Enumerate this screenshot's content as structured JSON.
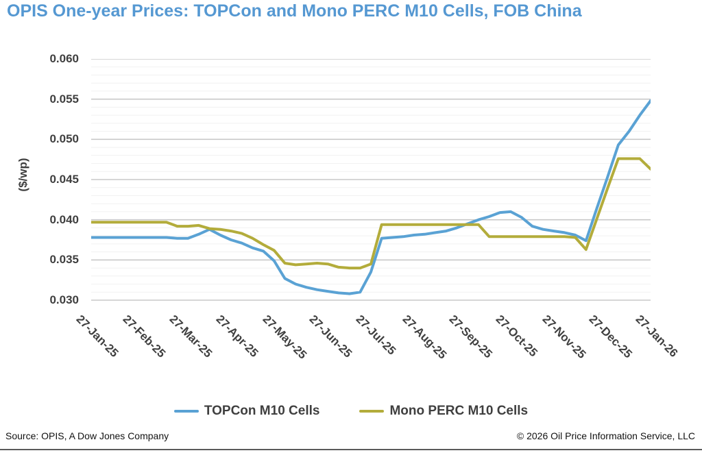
{
  "title": "OPIS One-year Prices: TOPCon and Mono PERC M10 Cells, FOB China",
  "footer": {
    "source": "Source: OPIS, A Dow Jones Company",
    "copyright": "© 2026 Oil Price Information Service, LLC"
  },
  "colors": {
    "title": "#5598D2",
    "topcon_line": "#5AA2D4",
    "mono_perc_line": "#B3AC3B",
    "axis_text": "#3f3f3f",
    "grid_major": "#c8c8c8",
    "grid_minor": "#f1f1f1"
  },
  "chart_data": {
    "type": "line",
    "title": "OPIS One-year Prices: TOPCon and Mono PERC M10 Cells, FOB China",
    "xlabel": "",
    "ylabel": "($/wp)",
    "ylim": [
      0.03,
      0.06
    ],
    "minor_step": 0.001,
    "major_step": 0.005,
    "grid": "horizontal major+minor",
    "legend_position": "bottom",
    "ytick_labels": [
      "0.060",
      "0.055",
      "0.050",
      "0.045",
      "0.040",
      "0.035",
      "0.030"
    ],
    "ytick_values": [
      0.06,
      0.055,
      0.05,
      0.045,
      0.04,
      0.035,
      0.03
    ],
    "xtick_labels": [
      "27-Jan-25",
      "27-Feb-25",
      "27-Mar-25",
      "27-Apr-25",
      "27-May-25",
      "27-Jun-25",
      "27-Jul-25",
      "27-Aug-25",
      "27-Sep-25",
      "27-Oct-25",
      "27-Nov-25",
      "27-Dec-25",
      "27-Jan-26"
    ],
    "x": [
      "27-Jan-25",
      "03-Feb-25",
      "10-Feb-25",
      "17-Feb-25",
      "24-Feb-25",
      "03-Mar-25",
      "10-Mar-25",
      "17-Mar-25",
      "24-Mar-25",
      "31-Mar-25",
      "07-Apr-25",
      "14-Apr-25",
      "21-Apr-25",
      "28-Apr-25",
      "05-May-25",
      "12-May-25",
      "19-May-25",
      "26-May-25",
      "02-Jun-25",
      "09-Jun-25",
      "16-Jun-25",
      "23-Jun-25",
      "30-Jun-25",
      "07-Jul-25",
      "14-Jul-25",
      "21-Jul-25",
      "28-Jul-25",
      "04-Aug-25",
      "11-Aug-25",
      "18-Aug-25",
      "25-Aug-25",
      "01-Sep-25",
      "08-Sep-25",
      "15-Sep-25",
      "22-Sep-25",
      "29-Sep-25",
      "06-Oct-25",
      "13-Oct-25",
      "20-Oct-25",
      "27-Oct-25",
      "03-Nov-25",
      "10-Nov-25",
      "17-Nov-25",
      "24-Nov-25",
      "01-Dec-25",
      "08-Dec-25",
      "15-Dec-25",
      "22-Dec-25",
      "29-Dec-25",
      "05-Jan-26",
      "12-Jan-26",
      "19-Jan-26",
      "26-Jan-26"
    ],
    "series": [
      {
        "name": "TOPCon M10 Cells",
        "color": "#5AA2D4",
        "values": [
          0.0378,
          0.0378,
          0.0378,
          0.0378,
          0.0378,
          0.0378,
          0.0378,
          0.0378,
          0.0377,
          0.0377,
          0.0382,
          0.0388,
          0.0381,
          0.0375,
          0.0371,
          0.0365,
          0.0361,
          0.0349,
          0.0327,
          0.032,
          0.0316,
          0.0313,
          0.0311,
          0.0309,
          0.0308,
          0.031,
          0.0335,
          0.0377,
          0.0378,
          0.0379,
          0.0381,
          0.0382,
          0.0384,
          0.0386,
          0.039,
          0.0395,
          0.04,
          0.0404,
          0.0409,
          0.041,
          0.0403,
          0.0392,
          0.0388,
          0.0386,
          0.0384,
          0.0381,
          0.0374,
          0.0414,
          0.0453,
          0.0493,
          0.051,
          0.053,
          0.0548
        ]
      },
      {
        "name": "Mono PERC M10 Cells",
        "color": "#B3AC3B",
        "values": [
          0.0397,
          0.0397,
          0.0397,
          0.0397,
          0.0397,
          0.0397,
          0.0397,
          0.0397,
          0.0392,
          0.0392,
          0.0393,
          0.0389,
          0.0388,
          0.0386,
          0.0383,
          0.0377,
          0.0369,
          0.0362,
          0.0346,
          0.0344,
          0.0345,
          0.0346,
          0.0345,
          0.0341,
          0.034,
          0.034,
          0.0345,
          0.0394,
          0.0394,
          0.0394,
          0.0394,
          0.0394,
          0.0394,
          0.0394,
          0.0394,
          0.0394,
          0.0394,
          0.0379,
          0.0379,
          0.0379,
          0.0379,
          0.0379,
          0.0379,
          0.0379,
          0.0379,
          0.0378,
          0.0363,
          0.0401,
          0.0439,
          0.0476,
          0.0476,
          0.0476,
          0.0463
        ]
      }
    ]
  }
}
